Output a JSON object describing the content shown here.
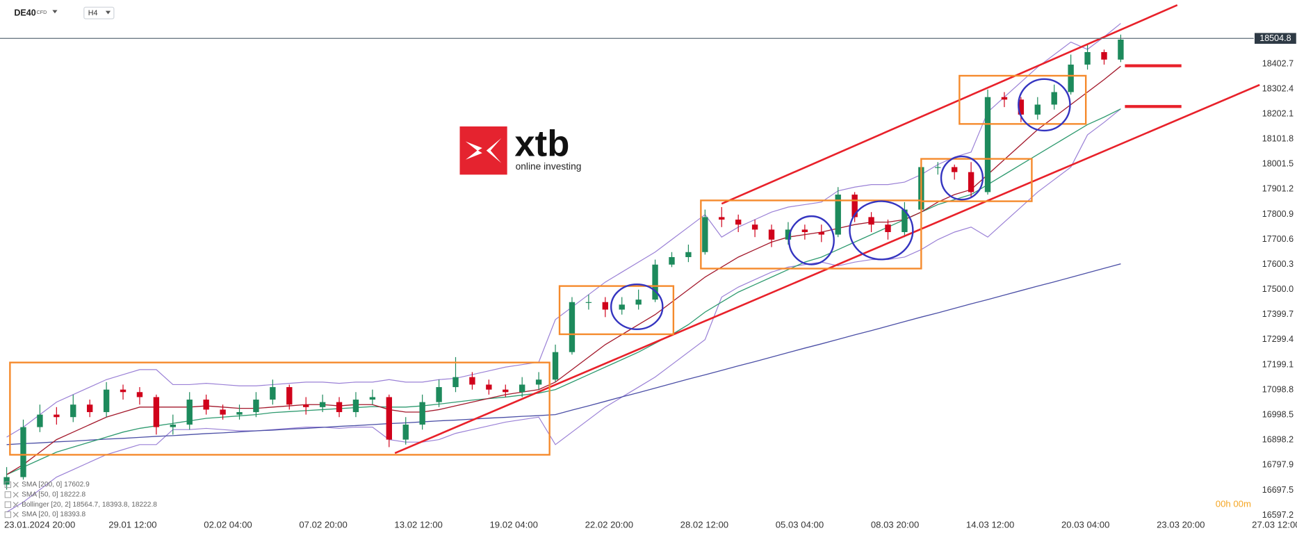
{
  "chart_data": {
    "type": "candlestick",
    "symbol": "DE40",
    "instrument_type": "CFD",
    "timeframe": "H4",
    "countdown": "00h 00m",
    "logo": {
      "name": "xtb",
      "tagline": "online investing"
    },
    "up_color": "#1d8a5c",
    "down_color": "#d0021b",
    "last_price": 18504.8,
    "ylim": [
      16580,
      18658
    ],
    "yticks": [
      16597.2,
      16697.5,
      16797.9,
      16898.2,
      16998.5,
      17098.8,
      17199.1,
      17299.4,
      17399.7,
      {
        "value": 17500,
        "label": "17500.0"
      },
      17600.3,
      17700.6,
      17800.9,
      17901.2,
      18001.5,
      18101.8,
      18202.1,
      18302.4,
      18402.7
    ],
    "x_tick_labels": [
      "23.01.2024  20:00",
      "29.01  12:00",
      "02.02  04:00",
      "07.02  20:00",
      "13.02  12:00",
      "19.02  04:00",
      "22.02  20:00",
      "28.02  12:00",
      "05.03  04:00",
      "08.03  20:00",
      "14.03  12:00",
      "20.03  04:00",
      "23.03  20:00",
      "27.03  12:00"
    ],
    "open": [
      16720,
      16750,
      16950,
      17000,
      16990,
      17040,
      17010,
      17100,
      17090,
      17070,
      16950,
      16960,
      17060,
      17020,
      17000,
      17010,
      17060,
      17110,
      17040,
      17030,
      17050,
      17010,
      17060,
      17070,
      16900,
      16960,
      17050,
      17110,
      17150,
      17120,
      17100,
      17090,
      17120,
      17140,
      17250,
      17450,
      17450,
      17420,
      17440,
      17460,
      17600,
      17630,
      17650,
      17790,
      17780,
      17760,
      17740,
      17700,
      17740,
      17730,
      17720,
      17880,
      17790,
      17760,
      17730,
      17820,
      17990,
      17990,
      17970,
      17890,
      18270,
      18260,
      18200,
      18240,
      18290,
      18400,
      18450,
      18420
    ],
    "high": [
      16790,
      16980,
      17040,
      17030,
      17080,
      17060,
      17130,
      17120,
      17110,
      17080,
      17000,
      17090,
      17080,
      17040,
      17040,
      17090,
      17140,
      17120,
      17070,
      17080,
      17070,
      17090,
      17100,
      17080,
      16990,
      17080,
      17140,
      17230,
      17170,
      17140,
      17120,
      17150,
      17170,
      17280,
      17470,
      17480,
      17470,
      17470,
      17500,
      17620,
      17650,
      17680,
      17820,
      17830,
      17800,
      17780,
      17760,
      17770,
      17760,
      17760,
      17910,
      17890,
      17810,
      17780,
      17850,
      18020,
      18010,
      18000,
      18010,
      18300,
      18290,
      18270,
      18270,
      18320,
      18440,
      18480,
      18460,
      18520
    ],
    "low": [
      16700,
      16740,
      16930,
      16960,
      16970,
      16990,
      16990,
      17060,
      17040,
      16920,
      16920,
      16940,
      17000,
      16980,
      16980,
      16990,
      17040,
      17020,
      17000,
      17010,
      16990,
      16990,
      17040,
      16870,
      16880,
      16940,
      17030,
      17090,
      17100,
      17080,
      17070,
      17070,
      17100,
      17130,
      17240,
      17420,
      17390,
      17400,
      17420,
      17450,
      17590,
      17610,
      17640,
      17750,
      17730,
      17710,
      17670,
      17680,
      17700,
      17690,
      17710,
      17770,
      17730,
      17700,
      17710,
      17810,
      17960,
      17940,
      17870,
      17880,
      18230,
      18170,
      18180,
      18220,
      18280,
      18380,
      18400,
      18410
    ],
    "close": [
      16750,
      16950,
      17000,
      16990,
      17040,
      17010,
      17100,
      17090,
      17070,
      16950,
      16960,
      17060,
      17020,
      17000,
      17010,
      17060,
      17110,
      17040,
      17030,
      17050,
      17010,
      17060,
      17070,
      16900,
      16960,
      17050,
      17110,
      17150,
      17120,
      17100,
      17090,
      17120,
      17140,
      17250,
      17450,
      17450,
      17420,
      17440,
      17460,
      17600,
      17630,
      17650,
      17790,
      17780,
      17760,
      17740,
      17700,
      17740,
      17730,
      17720,
      17880,
      17790,
      17760,
      17730,
      17820,
      17990,
      17990,
      17970,
      17890,
      18270,
      18260,
      18200,
      18240,
      18290,
      18400,
      18450,
      18420,
      18500
    ],
    "series": [
      {
        "name": "SMA  [200,  0]  17602.9",
        "color": "#4b4fa6",
        "values": [
          16880,
          16884,
          16887,
          16891,
          16894,
          16898,
          16902,
          16905,
          16909,
          16913,
          16916,
          16920,
          16924,
          16927,
          16931,
          16935,
          16938,
          16942,
          16945,
          16949,
          16953,
          16956,
          16960,
          16964,
          16967,
          16971,
          16975,
          16978,
          16982,
          16986,
          16989,
          16993,
          16996,
          17000,
          17018,
          17035,
          17053,
          17071,
          17088,
          17106,
          17124,
          17142,
          17159,
          17177,
          17195,
          17212,
          17230,
          17248,
          17266,
          17283,
          17301,
          17319,
          17336,
          17354,
          17372,
          17390,
          17407,
          17425,
          17443,
          17460,
          17478,
          17496,
          17514,
          17531,
          17549,
          17567,
          17585,
          17603
        ]
      },
      {
        "name": "SMA  [50,  0]  18222.8",
        "color": "#2e9a6f",
        "values": [
          16760,
          16790,
          16820,
          16850,
          16870,
          16890,
          16910,
          16930,
          16945,
          16955,
          16965,
          16975,
          16985,
          16990,
          16995,
          17000,
          17008,
          17012,
          17016,
          17020,
          17024,
          17028,
          17032,
          17030,
          17030,
          17035,
          17042,
          17050,
          17058,
          17064,
          17070,
          17078,
          17086,
          17100,
          17130,
          17160,
          17190,
          17220,
          17250,
          17285,
          17320,
          17360,
          17410,
          17450,
          17490,
          17520,
          17550,
          17580,
          17610,
          17630,
          17660,
          17690,
          17720,
          17750,
          17780,
          17810,
          17840,
          17860,
          17880,
          17920,
          17960,
          18000,
          18040,
          18080,
          18120,
          18160,
          18190,
          18222.8
        ]
      },
      {
        "name": "SMA  [20,  0]  18393.8",
        "color": "#a3182b",
        "values": [
          16760,
          16800,
          16850,
          16900,
          16930,
          16960,
          16990,
          17010,
          17030,
          17030,
          17030,
          17030,
          17035,
          17030,
          17025,
          17025,
          17030,
          17035,
          17040,
          17040,
          17035,
          17040,
          17040,
          17020,
          17010,
          17010,
          17020,
          17035,
          17050,
          17065,
          17080,
          17090,
          17100,
          17130,
          17180,
          17230,
          17280,
          17320,
          17360,
          17400,
          17450,
          17500,
          17550,
          17590,
          17630,
          17660,
          17690,
          17710,
          17720,
          17730,
          17745,
          17760,
          17770,
          17770,
          17780,
          17810,
          17850,
          17880,
          17900,
          17960,
          18020,
          18080,
          18140,
          18190,
          18240,
          18290,
          18340,
          18393.8
        ]
      }
    ],
    "bollinger": {
      "name": "Bollinger  [20,  2]  18564.7,  18393.8,  18222.8",
      "color": "#9a80d6",
      "upper": [
        16910,
        16950,
        17000,
        17050,
        17080,
        17110,
        17140,
        17160,
        17180,
        17180,
        17120,
        17120,
        17125,
        17120,
        17115,
        17115,
        17120,
        17125,
        17130,
        17130,
        17125,
        17130,
        17130,
        17140,
        17130,
        17130,
        17140,
        17145,
        17160,
        17175,
        17190,
        17200,
        17210,
        17380,
        17430,
        17480,
        17530,
        17570,
        17610,
        17650,
        17700,
        17750,
        17800,
        17710,
        17750,
        17780,
        17810,
        17830,
        17840,
        17850,
        17895,
        17910,
        17920,
        17920,
        17930,
        17960,
        18000,
        18030,
        18050,
        18210,
        18270,
        18330,
        18390,
        18440,
        18490,
        18461,
        18511,
        18564.7
      ],
      "lower": [
        16610,
        16650,
        16700,
        16750,
        16780,
        16810,
        16840,
        16860,
        16880,
        16880,
        16940,
        16940,
        16945,
        16940,
        16935,
        16935,
        16940,
        16945,
        16950,
        16950,
        16945,
        16950,
        16950,
        16900,
        16890,
        16890,
        16900,
        16925,
        16940,
        16955,
        16970,
        16980,
        16990,
        16880,
        16930,
        16980,
        17030,
        17070,
        17110,
        17150,
        17200,
        17250,
        17300,
        17470,
        17510,
        17540,
        17570,
        17590,
        17600,
        17610,
        17595,
        17610,
        17620,
        17620,
        17630,
        17660,
        17700,
        17730,
        17750,
        17710,
        17770,
        17830,
        17890,
        17940,
        17990,
        18119,
        18169,
        18222.8
      ]
    }
  }
}
